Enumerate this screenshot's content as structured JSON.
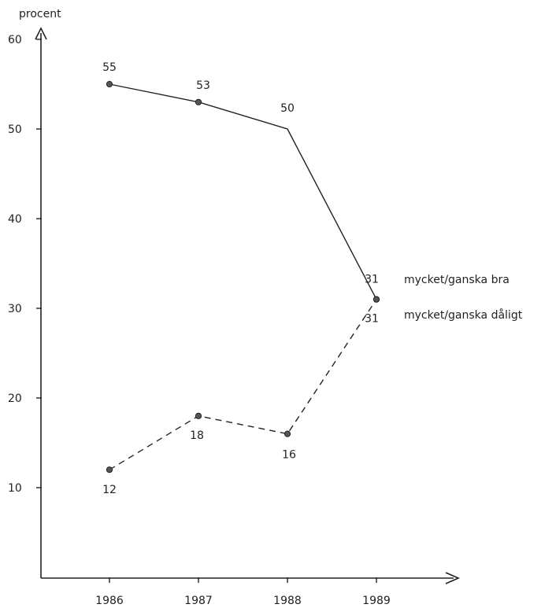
{
  "chart_data": {
    "type": "line",
    "ylabel": "procent",
    "categories": [
      "1986",
      "1987",
      "1988",
      "1989"
    ],
    "yticks": [
      10,
      20,
      30,
      40,
      50,
      60
    ],
    "ylim": [
      0,
      65
    ],
    "grid": false,
    "series": [
      {
        "name": "mycket/ganska bra",
        "values": [
          55,
          53,
          50,
          31
        ],
        "labels": [
          "55",
          "53",
          "50",
          "31"
        ],
        "line_style": "solid",
        "markers": [
          true,
          true,
          false,
          true
        ],
        "color": "#222222"
      },
      {
        "name": "mycket/ganska dåligt",
        "values": [
          12,
          18,
          16,
          31
        ],
        "labels": [
          "12",
          "18",
          "16",
          "31"
        ],
        "line_style": "dashed",
        "markers": [
          true,
          true,
          true,
          true
        ],
        "color": "#222222"
      }
    ]
  }
}
